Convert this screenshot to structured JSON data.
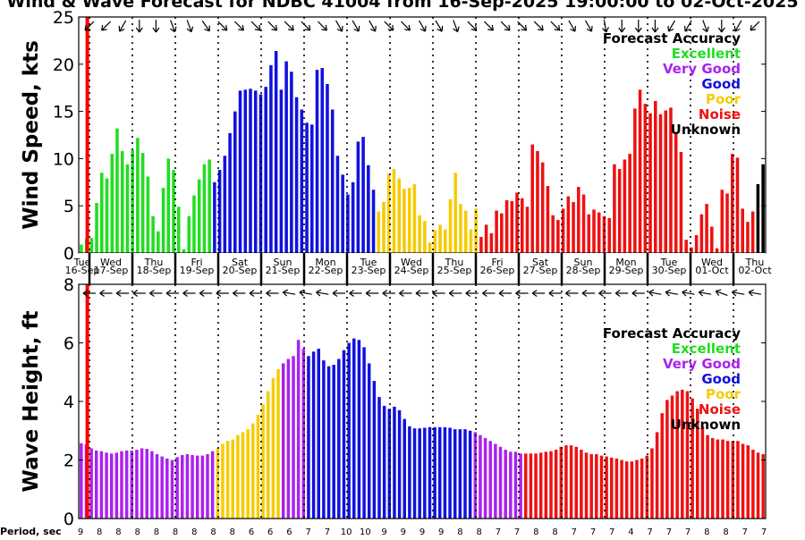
{
  "title": "Wind & Wave Forecast for NDBC 41004 from 16-Sep-2025 19:00:00 to 02-Oct-2025",
  "day_labels": [
    {
      "dow": "Tue",
      "date": "16-Sep"
    },
    {
      "dow": "Wed",
      "date": "17-Sep"
    },
    {
      "dow": "Thu",
      "date": "18-Sep"
    },
    {
      "dow": "Fri",
      "date": "19-Sep"
    },
    {
      "dow": "Sat",
      "date": "20-Sep"
    },
    {
      "dow": "Sun",
      "date": "21-Sep"
    },
    {
      "dow": "Mon",
      "date": "22-Sep"
    },
    {
      "dow": "Tue",
      "date": "23-Sep"
    },
    {
      "dow": "Wed",
      "date": "24-Sep"
    },
    {
      "dow": "Thu",
      "date": "25-Sep"
    },
    {
      "dow": "Fri",
      "date": "26-Sep"
    },
    {
      "dow": "Sat",
      "date": "27-Sep"
    },
    {
      "dow": "Sun",
      "date": "28-Sep"
    },
    {
      "dow": "Mon",
      "date": "29-Sep"
    },
    {
      "dow": "Tue",
      "date": "30-Sep"
    },
    {
      "dow": "Wed",
      "date": "01-Oct"
    },
    {
      "dow": "Thu",
      "date": "02-Oct"
    }
  ],
  "legend": {
    "title": "Forecast Accuracy",
    "items": [
      {
        "label": "Excellent",
        "color": "#22dd22"
      },
      {
        "label": "Very Good",
        "color": "#aa22ee"
      },
      {
        "label": "Good",
        "color": "#1111dd"
      },
      {
        "label": "Poor",
        "color": "#f5cc00"
      },
      {
        "label": "Noise",
        "color": "#ee1111"
      },
      {
        "label": "Unknown",
        "color": "#000000"
      }
    ]
  },
  "period_label": "Period, sec",
  "period_values": [
    "9",
    "8",
    "8",
    "8",
    "8",
    "8",
    "8",
    "8",
    "8",
    "6",
    "6",
    "6",
    "7",
    "7",
    "10",
    "10",
    "9",
    "9",
    "9",
    "9",
    "8",
    "8",
    "7",
    "7",
    "8",
    "8",
    "7",
    "7",
    "7",
    "4",
    "7",
    "7",
    "7",
    "8",
    "8",
    "7",
    "7"
  ],
  "chart_data": [
    {
      "type": "bar",
      "ylabel": "Wind Speed, kts",
      "ylim": [
        0,
        25
      ],
      "yticks": [
        0,
        5,
        10,
        15,
        20,
        25
      ],
      "x_unit": "days since 16-Sep-2025 00:00",
      "x_range": [
        0.75,
        16.75
      ],
      "now_marker_day": 0.95,
      "values": [
        0.9,
        1.5,
        1.6,
        5.3,
        8.5,
        7.9,
        10.5,
        13.2,
        10.8,
        9.4,
        10.9,
        12.2,
        10.6,
        8.1,
        3.9,
        2.3,
        6.9,
        10.0,
        8.8,
        4.9,
        0.4,
        3.9,
        6.1,
        7.8,
        9.4,
        9.9,
        7.5,
        8.8,
        10.3,
        12.7,
        15.0,
        17.2,
        17.3,
        17.4,
        17.2,
        16.8,
        17.6,
        19.9,
        21.4,
        17.3,
        20.3,
        19.2,
        16.5,
        15.2,
        13.8,
        13.6,
        19.4,
        19.6,
        17.9,
        15.2,
        10.3,
        8.3,
        6.2,
        7.5,
        11.8,
        12.3,
        9.3,
        6.7,
        4.4,
        5.4,
        8.4,
        8.9,
        7.9,
        6.8,
        6.9,
        7.3,
        4.0,
        3.4,
        1.1,
        2.4,
        3.0,
        2.5,
        5.7,
        8.5,
        5.2,
        4.5,
        2.5,
        4.7,
        1.7,
        3.0,
        2.1,
        4.5,
        4.2,
        5.6,
        5.5,
        6.4,
        5.8,
        4.9,
        11.5,
        10.8,
        9.6,
        7.1,
        4.0,
        3.5,
        4.7,
        6.0,
        5.4,
        7.0,
        6.2,
        4.1,
        4.6,
        4.3,
        3.9,
        3.7,
        9.4,
        8.9,
        9.9,
        10.5,
        15.3,
        17.3,
        15.8,
        14.8,
        16.1,
        14.7,
        15.1,
        15.4,
        12.8,
        10.7,
        1.4,
        0.6,
        1.9,
        4.1,
        5.2,
        2.8,
        0.5,
        6.7,
        6.3,
        10.5,
        10.1,
        4.7,
        3.3,
        4.4,
        7.3,
        9.4
      ],
      "accuracy": [
        "Excellent",
        "Excellent",
        "Excellent",
        "Excellent",
        "Excellent",
        "Excellent",
        "Excellent",
        "Excellent",
        "Excellent",
        "Excellent",
        "Excellent",
        "Excellent",
        "Excellent",
        "Excellent",
        "Excellent",
        "Excellent",
        "Excellent",
        "Excellent",
        "Excellent",
        "Excellent",
        "Excellent",
        "Excellent",
        "Excellent",
        "Excellent",
        "Excellent",
        "Excellent",
        "Good",
        "Good",
        "Good",
        "Good",
        "Good",
        "Good",
        "Good",
        "Good",
        "Good",
        "Good",
        "Good",
        "Good",
        "Good",
        "Good",
        "Good",
        "Good",
        "Good",
        "Good",
        "Good",
        "Good",
        "Good",
        "Good",
        "Good",
        "Good",
        "Good",
        "Good",
        "Good",
        "Good",
        "Good",
        "Good",
        "Good",
        "Good",
        "Poor",
        "Poor",
        "Poor",
        "Poor",
        "Poor",
        "Poor",
        "Poor",
        "Poor",
        "Poor",
        "Poor",
        "Poor",
        "Poor",
        "Poor",
        "Poor",
        "Poor",
        "Poor",
        "Poor",
        "Poor",
        "Poor",
        "Poor",
        "Noise",
        "Noise",
        "Noise",
        "Noise",
        "Noise",
        "Noise",
        "Noise",
        "Noise",
        "Noise",
        "Noise",
        "Noise",
        "Noise",
        "Noise",
        "Noise",
        "Noise",
        "Noise",
        "Noise",
        "Noise",
        "Noise",
        "Noise",
        "Noise",
        "Noise",
        "Noise",
        "Noise",
        "Noise",
        "Noise",
        "Noise",
        "Noise",
        "Noise",
        "Noise",
        "Noise",
        "Noise",
        "Noise",
        "Noise",
        "Noise",
        "Noise",
        "Noise",
        "Noise",
        "Noise",
        "Noise",
        "Noise",
        "Noise",
        "Noise",
        "Noise",
        "Noise",
        "Noise",
        "Noise",
        "Noise",
        "Noise",
        "Noise",
        "Noise",
        "Noise",
        "Noise",
        "Noise"
      ],
      "direction_arrows_deg": [
        315,
        315,
        300,
        270,
        270,
        250,
        250,
        235,
        225,
        225,
        225,
        225,
        225,
        225,
        225,
        240,
        240,
        240,
        225,
        225,
        240,
        240,
        250,
        225,
        225,
        225,
        225,
        225,
        225,
        240,
        240,
        260,
        270,
        270,
        270,
        300,
        300,
        250,
        270,
        300,
        315
      ]
    },
    {
      "type": "bar",
      "ylabel": "Wave Height, ft",
      "ylim": [
        0,
        8
      ],
      "yticks": [
        0,
        2,
        4,
        6,
        8
      ],
      "x_unit": "days since 16-Sep-2025 00:00",
      "x_range": [
        0.75,
        16.75
      ],
      "now_marker_day": 0.95,
      "values": [
        2.57,
        2.53,
        2.4,
        2.32,
        2.3,
        2.25,
        2.22,
        2.25,
        2.3,
        2.32,
        2.32,
        2.35,
        2.4,
        2.38,
        2.3,
        2.2,
        2.12,
        2.05,
        2.0,
        2.1,
        2.17,
        2.2,
        2.17,
        2.15,
        2.15,
        2.2,
        2.3,
        2.4,
        2.55,
        2.65,
        2.7,
        2.85,
        2.95,
        3.05,
        3.25,
        3.55,
        3.9,
        4.35,
        4.8,
        5.1,
        5.3,
        5.45,
        5.55,
        6.1,
        5.8,
        5.55,
        5.7,
        5.8,
        5.4,
        5.2,
        5.25,
        5.45,
        5.75,
        6.0,
        6.15,
        6.1,
        5.85,
        5.3,
        4.7,
        4.15,
        3.85,
        3.75,
        3.82,
        3.7,
        3.4,
        3.15,
        3.08,
        3.08,
        3.1,
        3.12,
        3.12,
        3.12,
        3.12,
        3.1,
        3.05,
        3.05,
        3.05,
        3.0,
        2.95,
        2.85,
        2.75,
        2.65,
        2.55,
        2.45,
        2.35,
        2.28,
        2.28,
        2.22,
        2.22,
        2.22,
        2.22,
        2.25,
        2.28,
        2.3,
        2.35,
        2.45,
        2.5,
        2.5,
        2.45,
        2.35,
        2.25,
        2.2,
        2.2,
        2.15,
        2.12,
        2.08,
        2.05,
        2.0,
        1.95,
        1.95,
        2.0,
        2.05,
        2.15,
        2.4,
        2.95,
        3.6,
        4.05,
        4.2,
        4.35,
        4.4,
        4.35,
        4.1,
        3.75,
        3.15,
        2.85,
        2.75,
        2.7,
        2.7,
        2.65,
        2.65,
        2.65,
        2.55,
        2.5,
        2.35,
        2.25,
        2.2
      ],
      "accuracy": [
        "Very Good",
        "Very Good",
        "Very Good",
        "Very Good",
        "Very Good",
        "Very Good",
        "Very Good",
        "Very Good",
        "Very Good",
        "Very Good",
        "Very Good",
        "Very Good",
        "Very Good",
        "Very Good",
        "Very Good",
        "Very Good",
        "Very Good",
        "Very Good",
        "Very Good",
        "Very Good",
        "Very Good",
        "Very Good",
        "Very Good",
        "Very Good",
        "Very Good",
        "Very Good",
        "Very Good",
        "Poor",
        "Poor",
        "Poor",
        "Poor",
        "Poor",
        "Poor",
        "Poor",
        "Poor",
        "Poor",
        "Poor",
        "Poor",
        "Poor",
        "Poor",
        "Very Good",
        "Very Good",
        "Very Good",
        "Very Good",
        "Very Good",
        "Good",
        "Good",
        "Good",
        "Good",
        "Good",
        "Good",
        "Good",
        "Good",
        "Good",
        "Good",
        "Good",
        "Good",
        "Good",
        "Good",
        "Good",
        "Good",
        "Good",
        "Good",
        "Good",
        "Good",
        "Good",
        "Good",
        "Good",
        "Good",
        "Good",
        "Good",
        "Good",
        "Good",
        "Good",
        "Good",
        "Good",
        "Good",
        "Good",
        "Very Good",
        "Very Good",
        "Very Good",
        "Very Good",
        "Very Good",
        "Very Good",
        "Very Good",
        "Very Good",
        "Very Good",
        "Very Good",
        "Noise",
        "Noise",
        "Noise",
        "Noise",
        "Noise",
        "Noise",
        "Noise",
        "Noise",
        "Noise",
        "Noise",
        "Noise",
        "Noise",
        "Noise",
        "Noise",
        "Noise",
        "Noise",
        "Noise",
        "Noise",
        "Noise",
        "Noise",
        "Noise",
        "Noise",
        "Noise",
        "Noise",
        "Noise",
        "Noise",
        "Noise",
        "Noise",
        "Noise",
        "Noise",
        "Noise",
        "Noise",
        "Noise",
        "Noise",
        "Noise",
        "Noise",
        "Noise",
        "Noise",
        "Noise",
        "Noise",
        "Noise",
        "Noise",
        "Noise",
        "Noise",
        "Noise",
        "Noise",
        "Noise",
        "Noise"
      ],
      "direction_arrows_deg": [
        0,
        0,
        0,
        0,
        0,
        0,
        0,
        0,
        0,
        0,
        0,
        0,
        10,
        10,
        10,
        0,
        0,
        0,
        0,
        0,
        0,
        0,
        0,
        0,
        0,
        0,
        0,
        0,
        0,
        0,
        0,
        0,
        0,
        0,
        10,
        10,
        10,
        10,
        20,
        10,
        10
      ]
    }
  ]
}
